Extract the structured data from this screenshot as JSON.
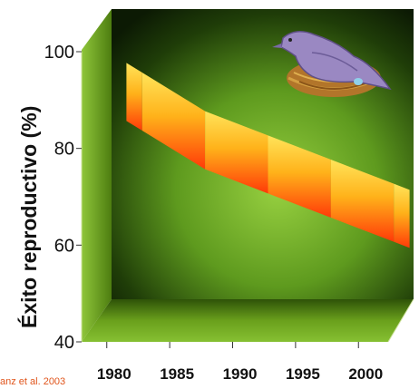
{
  "chart_data": {
    "type": "area",
    "style": "3d-ribbon",
    "ylabel": "Éxito reproductivo (%)",
    "xlabel": "",
    "title": "",
    "x": [
      1980,
      1985,
      1990,
      1995,
      2000
    ],
    "x_tick_labels": [
      "1980",
      "1985",
      "1990",
      "1995",
      "2000"
    ],
    "y_ticks": [
      40,
      60,
      80,
      100
    ],
    "y_tick_labels": [
      "40",
      "60",
      "80",
      "100"
    ],
    "ylim": [
      40,
      100
    ],
    "xlim": [
      1978,
      2002
    ],
    "series": [
      {
        "values": [
          85,
          77,
          72,
          67,
          62
        ]
      }
    ],
    "ribbon_thickness": 12,
    "source": "anz et al. 2003",
    "colors": {
      "back_wall_center": "#8fcc3c",
      "back_wall_edge": "#0c1a04",
      "side_wall": "#6f9e1a",
      "floor": "#5a8a12",
      "ribbon_top": "#ffe04a",
      "ribbon_bottom": "#ff3a08",
      "source_text": "#e0551c"
    },
    "decoration": "bird-on-nest-icon"
  }
}
